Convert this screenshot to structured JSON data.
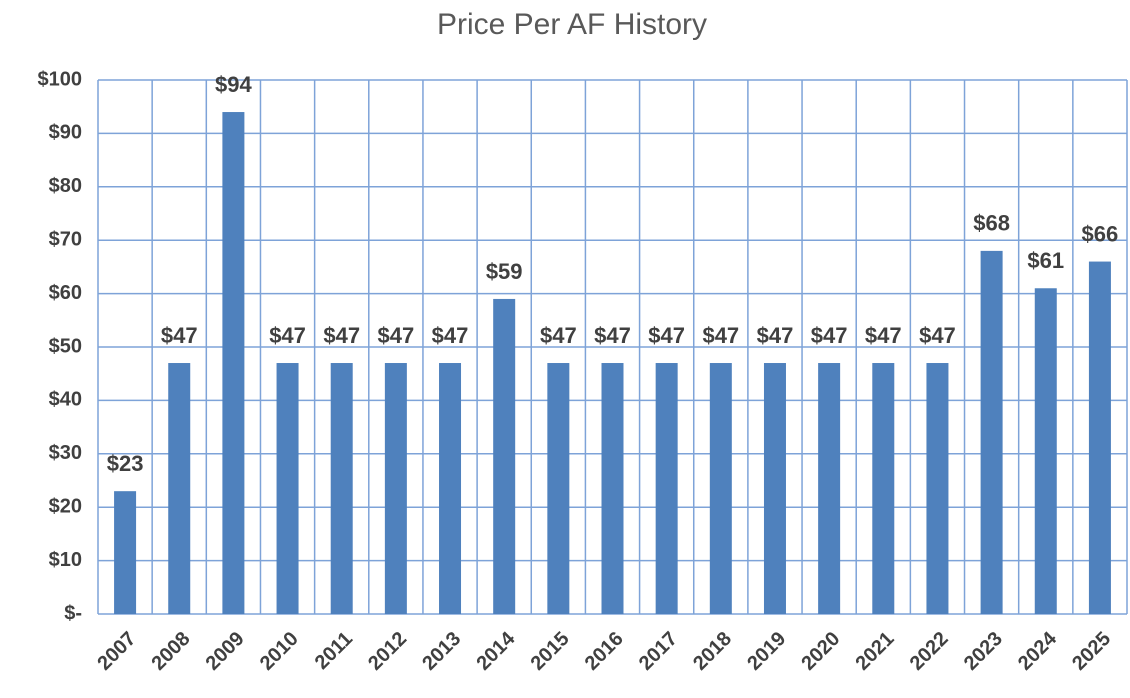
{
  "chart_data": {
    "type": "bar",
    "title": "Price Per AF History",
    "categories": [
      "2007",
      "2008",
      "2009",
      "2010",
      "2011",
      "2012",
      "2013",
      "2014",
      "2015",
      "2016",
      "2017",
      "2018",
      "2019",
      "2020",
      "2021",
      "2022",
      "2023",
      "2024",
      "2025"
    ],
    "values": [
      23,
      47,
      94,
      47,
      47,
      47,
      47,
      59,
      47,
      47,
      47,
      47,
      47,
      47,
      47,
      47,
      68,
      61,
      66
    ],
    "value_labels": [
      "$23",
      "$47",
      "$94",
      "$47",
      "$47",
      "$47",
      "$47",
      "$59",
      "$47",
      "$47",
      "$47",
      "$47",
      "$47",
      "$47",
      "$47",
      "$47",
      "$68",
      "$61",
      "$66"
    ],
    "color": "#4f81bd",
    "ylim": [
      0,
      100
    ],
    "yticks": [
      {
        "value": 0,
        "label": "$-"
      },
      {
        "value": 10,
        "label": "$10"
      },
      {
        "value": 20,
        "label": "$20"
      },
      {
        "value": 30,
        "label": "$30"
      },
      {
        "value": 40,
        "label": "$40"
      },
      {
        "value": 50,
        "label": "$50"
      },
      {
        "value": 60,
        "label": "$60"
      },
      {
        "value": 70,
        "label": "$70"
      },
      {
        "value": 80,
        "label": "$80"
      },
      {
        "value": 90,
        "label": "$90"
      },
      {
        "value": 100,
        "label": "$100"
      }
    ],
    "grid": true
  }
}
